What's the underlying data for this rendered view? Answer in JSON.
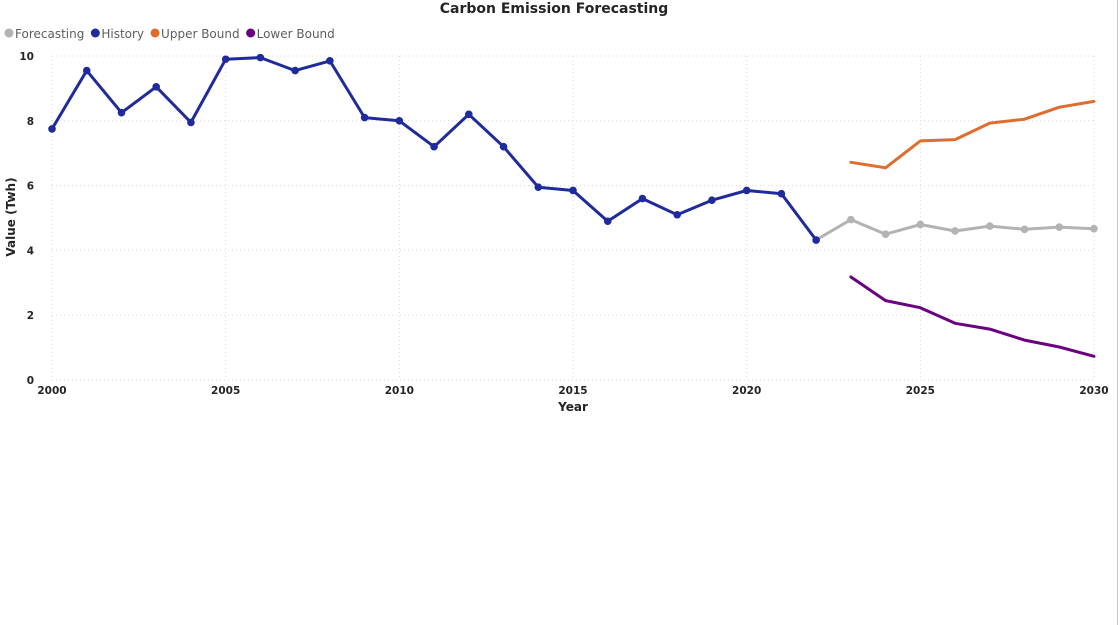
{
  "chart_data": {
    "type": "line",
    "title": "Carbon Emission Forecasting",
    "xlabel": "Year",
    "ylabel": "Value (Twh)",
    "xlim": [
      2000,
      2030
    ],
    "ylim": [
      0,
      10
    ],
    "x_ticks": [
      2000,
      2005,
      2010,
      2015,
      2020,
      2025,
      2030
    ],
    "y_ticks": [
      0,
      2,
      4,
      6,
      8,
      10
    ],
    "grid": true,
    "legend_position": "top-left",
    "legend": [
      "Forecasting",
      "History",
      "Upper Bound",
      "Lower Bound"
    ],
    "series": [
      {
        "name": "Forecasting",
        "color": "#b3b3b3",
        "markers": true,
        "x": [
          2022,
          2023,
          2024,
          2025,
          2026,
          2027,
          2028,
          2029,
          2030
        ],
        "values": [
          4.32,
          4.95,
          4.5,
          4.8,
          4.6,
          4.75,
          4.65,
          4.72,
          4.67
        ]
      },
      {
        "name": "History",
        "color": "#1f2a9c",
        "markers": true,
        "x": [
          2000,
          2001,
          2002,
          2003,
          2004,
          2005,
          2006,
          2007,
          2008,
          2009,
          2010,
          2011,
          2012,
          2013,
          2014,
          2015,
          2016,
          2017,
          2018,
          2019,
          2020,
          2021,
          2022
        ],
        "values": [
          7.75,
          9.55,
          8.25,
          9.05,
          7.95,
          9.9,
          9.95,
          9.55,
          9.85,
          8.1,
          8.0,
          7.2,
          8.2,
          7.2,
          5.95,
          5.85,
          4.9,
          5.6,
          5.1,
          5.55,
          5.85,
          5.75,
          4.32
        ]
      },
      {
        "name": "Upper Bound",
        "color": "#e06c2e",
        "markers": false,
        "x": [
          2023,
          2024,
          2025,
          2026,
          2027,
          2028,
          2029,
          2030
        ],
        "values": [
          6.72,
          6.55,
          7.38,
          7.42,
          7.93,
          8.05,
          8.42,
          8.6
        ]
      },
      {
        "name": "Lower Bound",
        "color": "#6b0080",
        "markers": false,
        "x": [
          2023,
          2024,
          2025,
          2026,
          2027,
          2028,
          2029,
          2030
        ],
        "values": [
          3.18,
          2.45,
          2.23,
          1.75,
          1.57,
          1.23,
          1.02,
          0.73
        ]
      }
    ]
  }
}
